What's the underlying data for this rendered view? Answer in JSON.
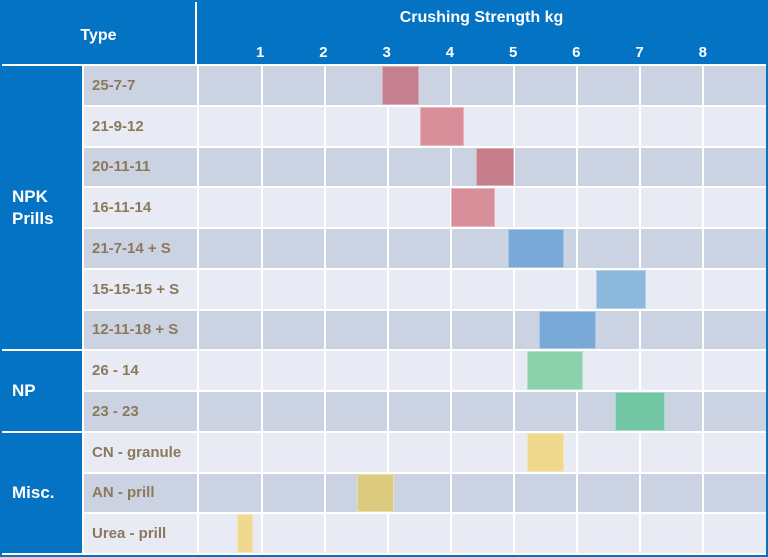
{
  "header": {
    "type_label": "Type",
    "axis_title": "Crushing Strength kg"
  },
  "colors": {
    "header_blue": "#0473c3",
    "row_band_dark": "#cbd3e2",
    "row_band_light": "#e8ebf3",
    "row_label_text": "#8a795c",
    "gridline": "#ffffff"
  },
  "chart_data": {
    "type": "bar",
    "variant": "horizontal floating range bars",
    "title": "Crushing Strength kg",
    "xlabel": "Crushing Strength kg",
    "x_axis": {
      "min": 0,
      "max": 9,
      "ticks": [
        1,
        2,
        3,
        4,
        5,
        6,
        7,
        8
      ],
      "unit": "kg"
    },
    "grid": true,
    "row_groups": [
      {
        "label": "NPK Prills",
        "row_count": 7
      },
      {
        "label": "NP",
        "row_count": 2
      },
      {
        "label": "Misc.",
        "row_count": 3
      }
    ],
    "rows": [
      {
        "group": "NPK Prills",
        "label": "25-7-7",
        "range_kg": [
          2.9,
          3.5
        ],
        "bar_color": "#c5808f"
      },
      {
        "group": "NPK Prills",
        "label": "21-9-12",
        "range_kg": [
          3.5,
          4.2
        ],
        "bar_color": "#d98f9a"
      },
      {
        "group": "NPK Prills",
        "label": "20-11-11",
        "range_kg": [
          4.4,
          5.0
        ],
        "bar_color": "#c67e8d"
      },
      {
        "group": "NPK Prills",
        "label": "16-11-14",
        "range_kg": [
          4.0,
          4.7
        ],
        "bar_color": "#d98f9a"
      },
      {
        "group": "NPK Prills",
        "label": "21-7-14 + S",
        "range_kg": [
          4.9,
          5.8
        ],
        "bar_color": "#79a9d6"
      },
      {
        "group": "NPK Prills",
        "label": "15-15-15 + S",
        "range_kg": [
          6.3,
          7.1
        ],
        "bar_color": "#8cb8dd"
      },
      {
        "group": "NPK Prills",
        "label": "12-11-18 + S",
        "range_kg": [
          5.4,
          6.3
        ],
        "bar_color": "#79a9d6"
      },
      {
        "group": "NP",
        "label": "26 - 14",
        "range_kg": [
          5.2,
          6.1
        ],
        "bar_color": "#8ed1ad"
      },
      {
        "group": "NP",
        "label": "23 - 23",
        "range_kg": [
          6.6,
          7.4
        ],
        "bar_color": "#74c7a4"
      },
      {
        "group": "Misc.",
        "label": "CN - granule",
        "range_kg": [
          5.2,
          5.8
        ],
        "bar_color": "#f0d88c"
      },
      {
        "group": "Misc.",
        "label": "AN - prill",
        "range_kg": [
          2.5,
          3.1
        ],
        "bar_color": "#dccb7e"
      },
      {
        "group": "Misc.",
        "label": "Urea - prill",
        "range_kg": [
          0.6,
          0.85
        ],
        "bar_color": "#efd98f"
      }
    ]
  }
}
